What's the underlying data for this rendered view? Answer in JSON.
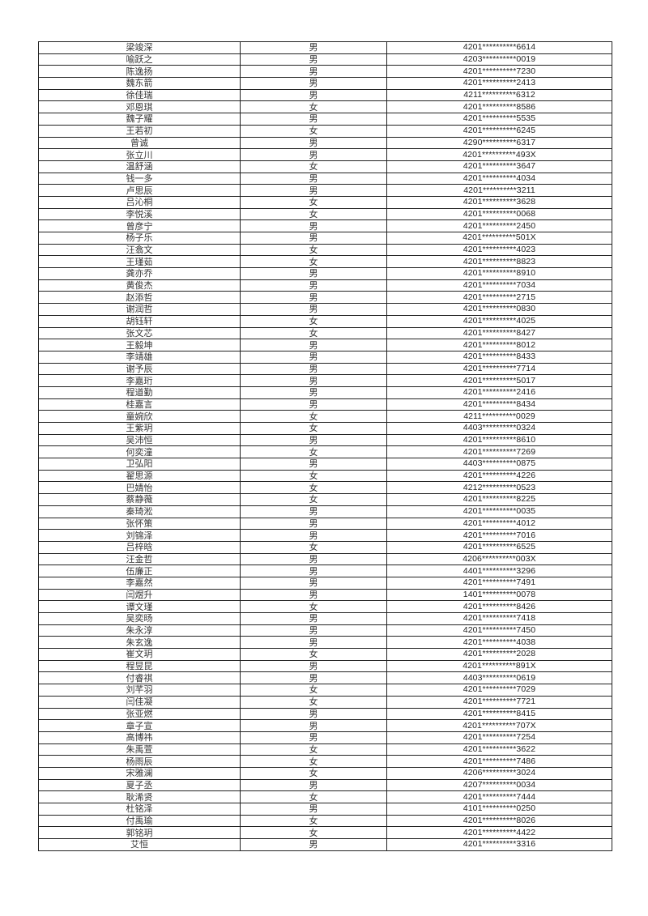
{
  "rows": [
    {
      "name": "梁竣深",
      "gender": "男",
      "id": "4201**********6614"
    },
    {
      "name": "喻跃之",
      "gender": "男",
      "id": "4203**********0019"
    },
    {
      "name": "陈逸扬",
      "gender": "男",
      "id": "4201**********7230"
    },
    {
      "name": "魏东箭",
      "gender": "男",
      "id": "4201**********2413"
    },
    {
      "name": "徐佳瑞",
      "gender": "男",
      "id": "4211**********6312"
    },
    {
      "name": "邓恩琪",
      "gender": "女",
      "id": "4201**********8586"
    },
    {
      "name": "魏子耀",
      "gender": "男",
      "id": "4201**********5535"
    },
    {
      "name": "王若初",
      "gender": "女",
      "id": "4201**********6245"
    },
    {
      "name": "曾诚",
      "gender": "男",
      "id": "4290**********6317"
    },
    {
      "name": "张立川",
      "gender": "男",
      "id": "4201**********493X"
    },
    {
      "name": "温舒涵",
      "gender": "女",
      "id": "4201**********3647"
    },
    {
      "name": "钱一多",
      "gender": "男",
      "id": "4201**********4034"
    },
    {
      "name": "卢思辰",
      "gender": "男",
      "id": "4201**********3211"
    },
    {
      "name": "吕沁桐",
      "gender": "女",
      "id": "4201**********3628"
    },
    {
      "name": "李悦溪",
      "gender": "女",
      "id": "4201**********0068"
    },
    {
      "name": "曾彦宁",
      "gender": "男",
      "id": "4201**********2450"
    },
    {
      "name": "杨子乐",
      "gender": "男",
      "id": "4201**********501X"
    },
    {
      "name": "汪翕文",
      "gender": "女",
      "id": "4201**********4023"
    },
    {
      "name": "王瑾茹",
      "gender": "女",
      "id": "4201**********8823"
    },
    {
      "name": "龚亦乔",
      "gender": "男",
      "id": "4201**********8910"
    },
    {
      "name": "黄俊杰",
      "gender": "男",
      "id": "4201**********7034"
    },
    {
      "name": "赵添哲",
      "gender": "男",
      "id": "4201**********2715"
    },
    {
      "name": "谢润哲",
      "gender": "男",
      "id": "4201**********0830"
    },
    {
      "name": "胡钰轩",
      "gender": "女",
      "id": "4201**********4025"
    },
    {
      "name": "张文芯",
      "gender": "女",
      "id": "4201**********8427"
    },
    {
      "name": "王毅坤",
      "gender": "男",
      "id": "4201**********8012"
    },
    {
      "name": "李靖雄",
      "gender": "男",
      "id": "4201**********8433"
    },
    {
      "name": "谢予辰",
      "gender": "男",
      "id": "4201**********7714"
    },
    {
      "name": "李嘉珩",
      "gender": "男",
      "id": "4201**********5017"
    },
    {
      "name": "程道勤",
      "gender": "男",
      "id": "4201**********2416"
    },
    {
      "name": "桂嘉言",
      "gender": "男",
      "id": "4201**********8434"
    },
    {
      "name": "童婉欣",
      "gender": "女",
      "id": "4211**********0029"
    },
    {
      "name": "王紫玥",
      "gender": "女",
      "id": "4403**********0324"
    },
    {
      "name": "吴沛恒",
      "gender": "男",
      "id": "4201**********8610"
    },
    {
      "name": "何奕潼",
      "gender": "女",
      "id": "4201**********7269"
    },
    {
      "name": "卫弘阳",
      "gender": "男",
      "id": "4403**********0875"
    },
    {
      "name": "翟思源",
      "gender": "女",
      "id": "4201**********4226"
    },
    {
      "name": "巴婧怡",
      "gender": "女",
      "id": "4212**********0523"
    },
    {
      "name": "蔡静薇",
      "gender": "女",
      "id": "4201**********8225"
    },
    {
      "name": "秦琦淞",
      "gender": "男",
      "id": "4201**********0035"
    },
    {
      "name": "张怀策",
      "gender": "男",
      "id": "4201**********4012"
    },
    {
      "name": "刘锦泽",
      "gender": "男",
      "id": "4201**********7016"
    },
    {
      "name": "吕梓晗",
      "gender": "女",
      "id": "4201**********6525"
    },
    {
      "name": "汪金哲",
      "gender": "男",
      "id": "4206**********003X"
    },
    {
      "name": "伍廉正",
      "gender": "男",
      "id": "4401**********3296"
    },
    {
      "name": "李嘉然",
      "gender": "男",
      "id": "4201**********7491"
    },
    {
      "name": "闫煜升",
      "gender": "男",
      "id": "1401**********0078"
    },
    {
      "name": "谭文瑾",
      "gender": "女",
      "id": "4201**********8426"
    },
    {
      "name": "吴奕旸",
      "gender": "男",
      "id": "4201**********7418"
    },
    {
      "name": "朱永淳",
      "gender": "男",
      "id": "4201**********7450"
    },
    {
      "name": "朱玄逸",
      "gender": "男",
      "id": "4201**********4038"
    },
    {
      "name": "崔文玥",
      "gender": "女",
      "id": "4201**********2028"
    },
    {
      "name": "程昱昆",
      "gender": "男",
      "id": "4201**********891X"
    },
    {
      "name": "付睿祺",
      "gender": "男",
      "id": "4403**********0619"
    },
    {
      "name": "刘芊羽",
      "gender": "女",
      "id": "4201**********7029"
    },
    {
      "name": "闫佳凝",
      "gender": "女",
      "id": "4201**********7721"
    },
    {
      "name": "张亚燃",
      "gender": "男",
      "id": "4201**********8415"
    },
    {
      "name": "章子宣",
      "gender": "男",
      "id": "4201**********707X"
    },
    {
      "name": "高博祎",
      "gender": "男",
      "id": "4201**********7254"
    },
    {
      "name": "朱禹萱",
      "gender": "女",
      "id": "4201**********3622"
    },
    {
      "name": "杨雨辰",
      "gender": "女",
      "id": "4201**********7486"
    },
    {
      "name": "宋雅澜",
      "gender": "女",
      "id": "4206**********3024"
    },
    {
      "name": "夏子丞",
      "gender": "男",
      "id": "4207**********0034"
    },
    {
      "name": "耿浠贤",
      "gender": "女",
      "id": "4201**********7444"
    },
    {
      "name": "杜铭泽",
      "gender": "男",
      "id": "4101**********0250"
    },
    {
      "name": "付禹瑜",
      "gender": "女",
      "id": "4201**********8026"
    },
    {
      "name": "郭铭玥",
      "gender": "女",
      "id": "4201**********4422"
    },
    {
      "name": "艾恒",
      "gender": "男",
      "id": "4201**********3316"
    }
  ]
}
